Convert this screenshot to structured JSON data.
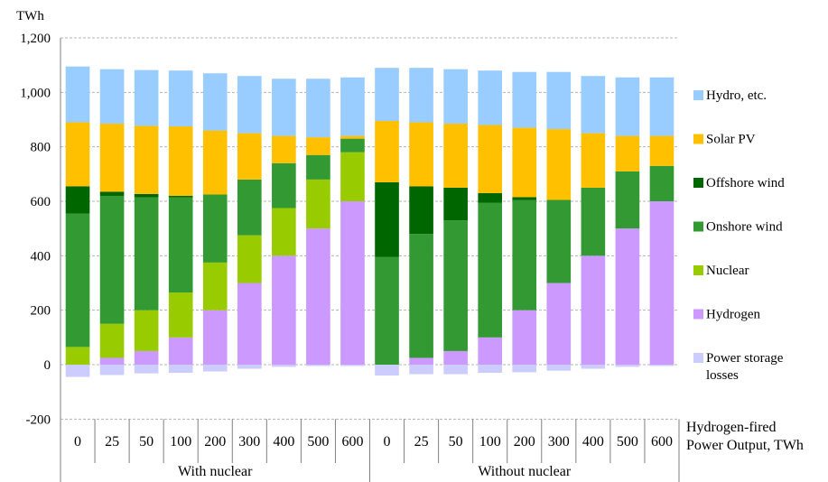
{
  "chart_data": {
    "type": "bar",
    "stacked": true,
    "ylabel": "TWh",
    "ylim": [
      -200,
      1200
    ],
    "yticks": [
      -200,
      0,
      200,
      400,
      600,
      800,
      1000,
      1200
    ],
    "ytick_labels": [
      "-200",
      "0",
      "200",
      "400",
      "600",
      "800",
      "1,000",
      "1,200"
    ],
    "grid": true,
    "legend_position": "right",
    "x_axis_title": [
      "Hydrogen-fired",
      "Power Output, TWh"
    ],
    "groups": [
      {
        "label": "With nuclear",
        "categories": [
          "0",
          "25",
          "50",
          "100",
          "200",
          "300",
          "400",
          "500",
          "600"
        ]
      },
      {
        "label": "Without nuclear",
        "categories": [
          "0",
          "25",
          "50",
          "100",
          "200",
          "300",
          "400",
          "500",
          "600"
        ]
      }
    ],
    "series": [
      {
        "name": "Power storage\nlosses",
        "color": "#ccccff",
        "values": [
          -45,
          -38,
          -32,
          -30,
          -25,
          -15,
          -8,
          -5,
          -5,
          -40,
          -35,
          -35,
          -30,
          -28,
          -22,
          -15,
          -8,
          -5
        ]
      },
      {
        "name": "Hydrogen",
        "color": "#cc99ff",
        "values": [
          0,
          25,
          50,
          100,
          200,
          300,
          400,
          500,
          600,
          0,
          25,
          50,
          100,
          200,
          300,
          400,
          500,
          600
        ]
      },
      {
        "name": "Nuclear",
        "color": "#99cc00",
        "values": [
          65,
          125,
          150,
          165,
          175,
          175,
          175,
          180,
          180,
          0,
          0,
          0,
          0,
          0,
          0,
          0,
          0,
          0
        ]
      },
      {
        "name": "Onshore wind",
        "color": "#339933",
        "values": [
          490,
          470,
          415,
          350,
          250,
          205,
          165,
          90,
          50,
          395,
          455,
          480,
          495,
          405,
          305,
          250,
          210,
          130
        ]
      },
      {
        "name": "Offshore wind",
        "color": "#006600",
        "values": [
          100,
          15,
          12,
          5,
          0,
          0,
          0,
          0,
          0,
          275,
          175,
          120,
          35,
          10,
          0,
          0,
          0,
          0
        ]
      },
      {
        "name": "Solar PV",
        "color": "#ffc000",
        "values": [
          235,
          250,
          250,
          255,
          235,
          170,
          100,
          65,
          10,
          225,
          235,
          235,
          250,
          255,
          260,
          200,
          130,
          110
        ]
      },
      {
        "name": "Hydro, etc.",
        "color": "#99ccff",
        "values": [
          205,
          200,
          205,
          205,
          210,
          210,
          210,
          215,
          215,
          195,
          200,
          200,
          200,
          205,
          210,
          210,
          215,
          215
        ]
      }
    ],
    "legend_order": [
      "Hydro, etc.",
      "Solar PV",
      "Offshore wind",
      "Onshore wind",
      "Nuclear",
      "Hydrogen",
      "Power storage\nlosses"
    ]
  }
}
